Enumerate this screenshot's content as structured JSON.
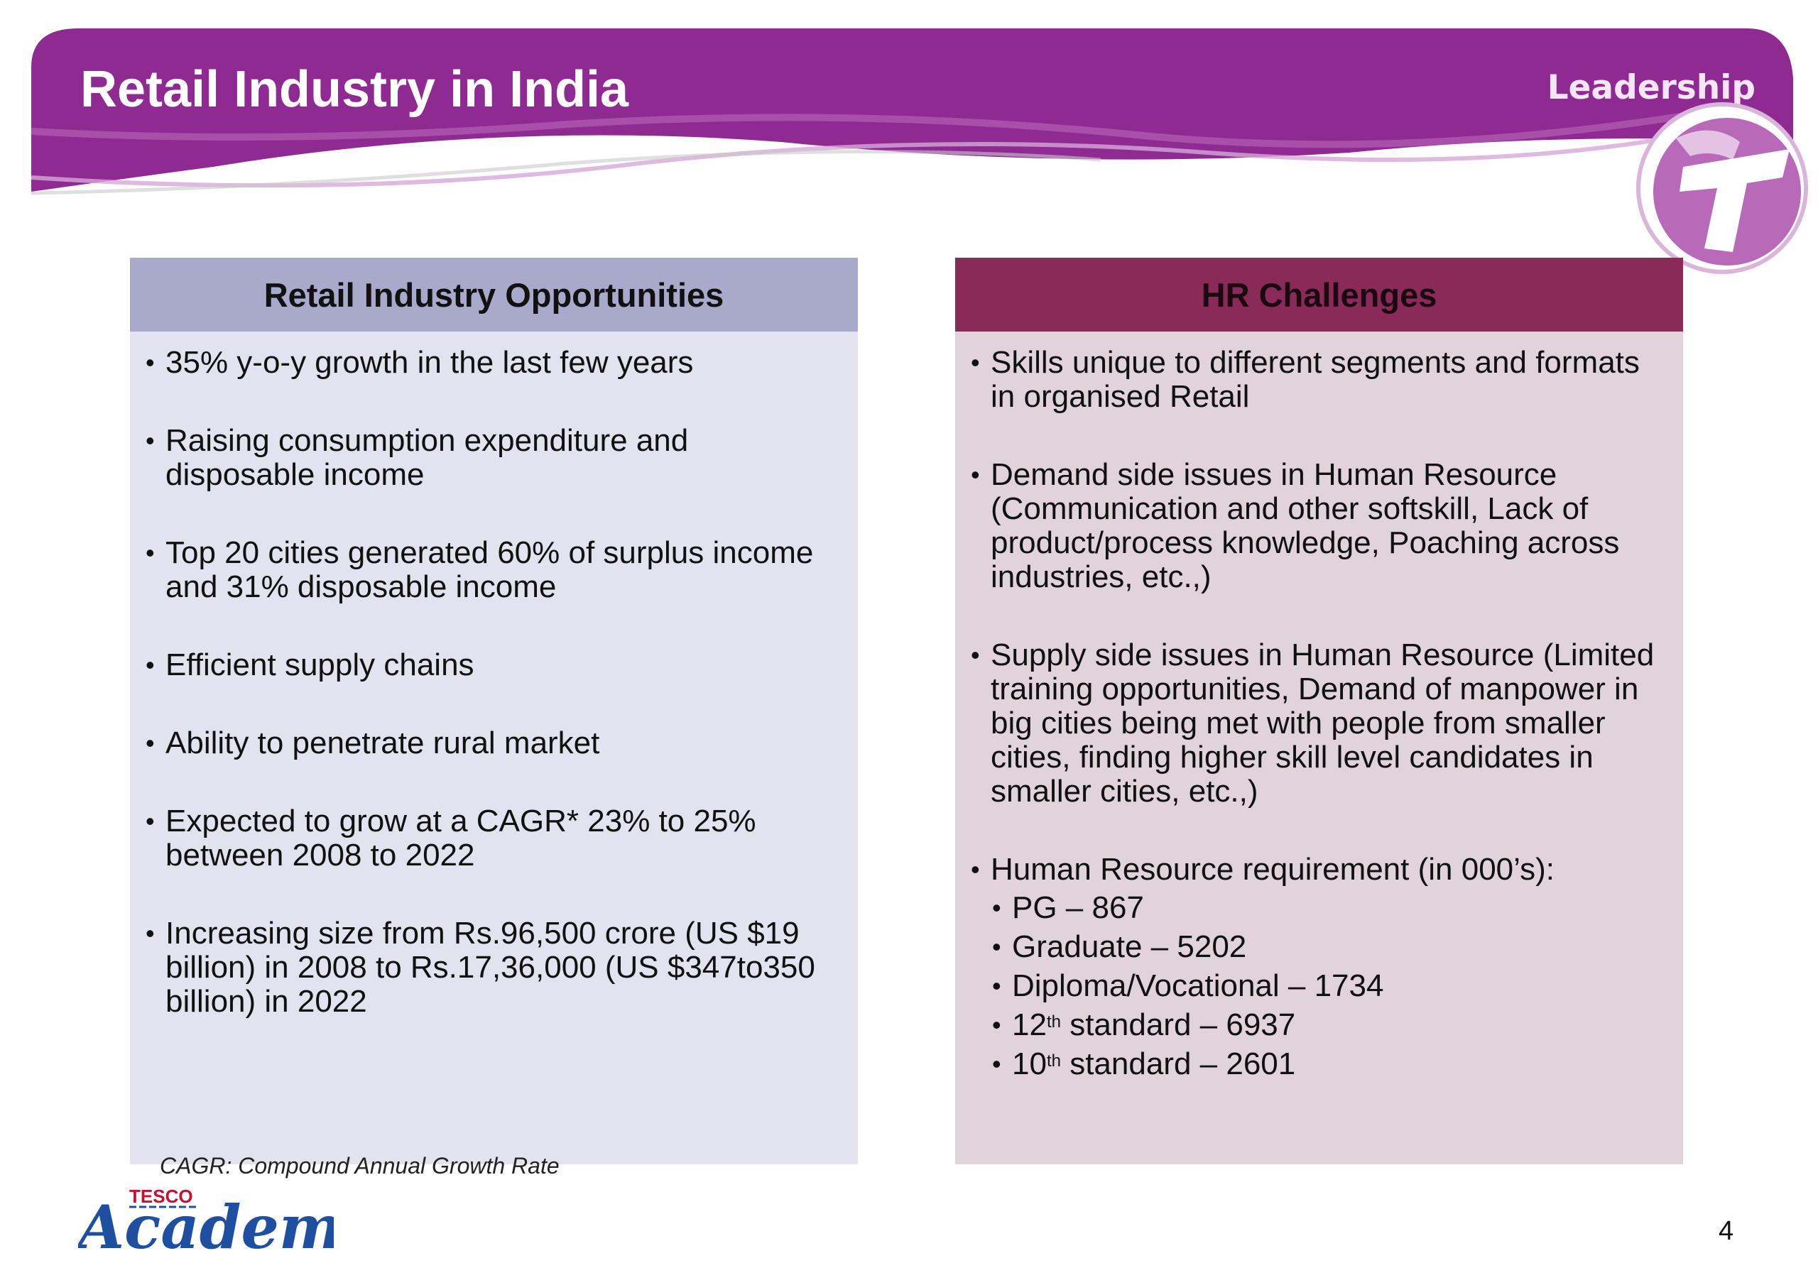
{
  "header": {
    "title": "Retail Industry in India",
    "section": "Leadership",
    "accent_color": "#8e2a91"
  },
  "left_panel": {
    "heading": "Retail Industry Opportunities",
    "bullets": [
      "35% y-o-y growth in the last few years",
      "Raising consumption expenditure and disposable income",
      "Top 20 cities generated 60% of surplus income and 31% disposable income",
      "Efficient supply chains",
      "Ability to penetrate rural market",
      "Expected to grow at a CAGR* 23% to 25% between 2008 to 2022",
      "Increasing size from Rs.96,500 crore (US $19 billion) in 2008 to Rs.17,36,000 (US $347to350 billion) in 2022"
    ],
    "footnote": "CAGR: Compound Annual Growth Rate"
  },
  "right_panel": {
    "heading": "HR Challenges",
    "bullets": [
      "Skills unique to different segments and formats in organised Retail",
      "Demand side issues in Human Resource (Communication and other softskill, Lack of product/process knowledge, Poaching across industries, etc.,)",
      "Supply side issues in Human Resource (Limited training opportunities, Demand of manpower in big cities being met with people from smaller cities, finding higher skill level candidates in smaller cities, etc.,)",
      "Human Resource requirement (in 000’s):"
    ],
    "requirements": [
      {
        "label": "PG – 867"
      },
      {
        "label": "Graduate – 5202"
      },
      {
        "label": "Diploma/Vocational – 1734"
      },
      {
        "pre": "12",
        "sup": "th",
        "post": " standard – 6937"
      },
      {
        "pre": "10",
        "sup": "th",
        "post": " standard – 2601"
      }
    ]
  },
  "footer": {
    "brand_small": "TESCO",
    "brand_large": "Academy",
    "page_number": "4"
  }
}
